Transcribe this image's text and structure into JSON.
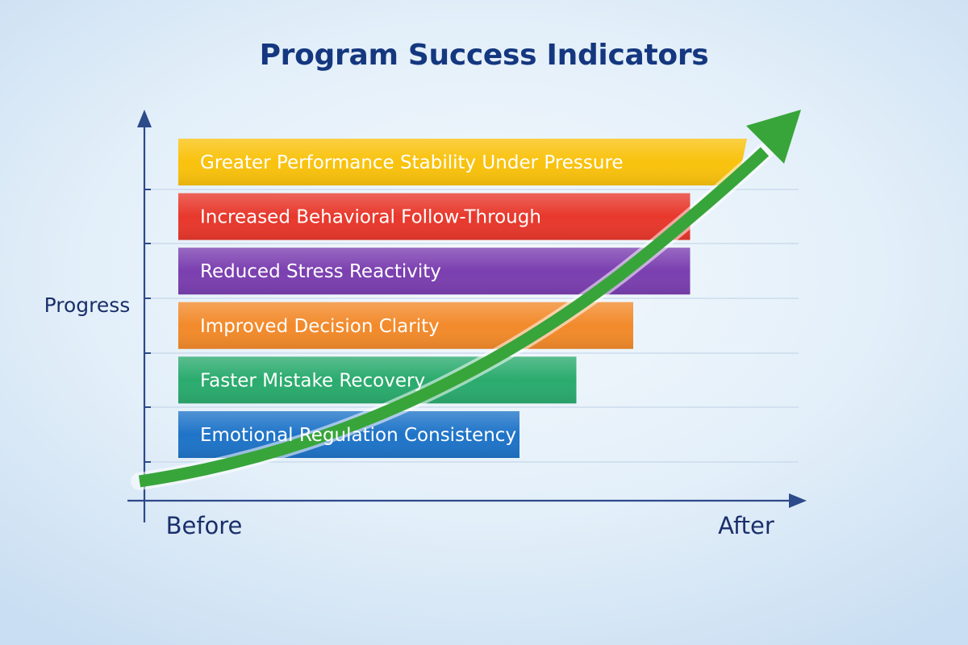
{
  "chart_data": {
    "type": "bar",
    "orientation": "horizontal",
    "title": "Program Success Indicators",
    "ylabel": "Progress",
    "x_start_label": "Before",
    "x_end_label": "After",
    "xlim": [
      0,
      100
    ],
    "grid": true,
    "categories": [
      "Greater Performance Stability Under Pressure",
      "Increased Behavioral Follow-Through",
      "Reduced Stress Reactivity",
      "Improved Decision Clarity",
      "Faster Mistake Recovery",
      "Emotional Regulation Consistency"
    ],
    "values": [
      100,
      90,
      90,
      80,
      70,
      60
    ],
    "colors": [
      "#f9c20d",
      "#e8382c",
      "#7b3fb0",
      "#f28a2b",
      "#2bab6e",
      "#1f74c8"
    ],
    "trend_arrow_color": "#38a53a"
  }
}
